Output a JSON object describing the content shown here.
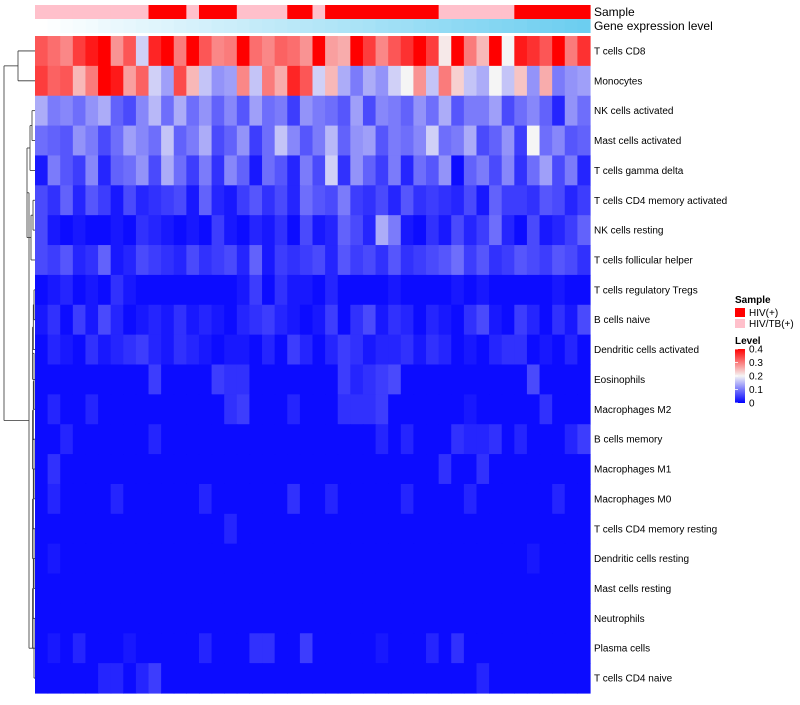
{
  "chart_data": {
    "type": "heatmap",
    "annotation_rows": [
      {
        "name": "Sample"
      },
      {
        "name": "Gene expression level"
      }
    ],
    "rows": [
      "T cells CD8",
      "Monocytes",
      "NK cells activated",
      "Mast cells activated",
      "T cells gamma delta",
      "T cells CD4 memory activated",
      "NK cells resting",
      "T cells follicular helper",
      "T cells regulatory  Tregs",
      "B cells naive",
      "Dendritic cells activated",
      "Eosinophils",
      "Macrophages M2",
      "B cells memory",
      "Macrophages M1",
      "Macrophages M0",
      "T cells CD4 memory resting",
      "Dendritic cells resting",
      "Mast cells resting",
      "Neutrophils",
      "Plasma cells",
      "T cells CD4 naive"
    ],
    "sample_groups": [
      "HIV/TB(+)",
      "HIV/TB(+)",
      "HIV/TB(+)",
      "HIV/TB(+)",
      "HIV/TB(+)",
      "HIV/TB(+)",
      "HIV/TB(+)",
      "HIV/TB(+)",
      "HIV/TB(+)",
      "HIV(+)",
      "HIV(+)",
      "HIV(+)",
      "HIV/TB(+)",
      "HIV(+)",
      "HIV(+)",
      "HIV(+)",
      "HIV/TB(+)",
      "HIV/TB(+)",
      "HIV/TB(+)",
      "HIV/TB(+)",
      "HIV(+)",
      "HIV(+)",
      "HIV/TB(+)",
      "HIV(+)",
      "HIV(+)",
      "HIV(+)",
      "HIV(+)",
      "HIV(+)",
      "HIV(+)",
      "HIV(+)",
      "HIV(+)",
      "HIV(+)",
      "HIV/TB(+)",
      "HIV/TB(+)",
      "HIV/TB(+)",
      "HIV/TB(+)",
      "HIV/TB(+)",
      "HIV/TB(+)",
      "HIV(+)",
      "HIV(+)",
      "HIV(+)",
      "HIV(+)",
      "HIV(+)",
      "HIV(+)"
    ],
    "gene_expression_level": [
      0.0,
      0.02,
      0.05,
      0.07,
      0.09,
      0.12,
      0.14,
      0.16,
      0.19,
      0.21,
      0.23,
      0.26,
      0.28,
      0.3,
      0.33,
      0.35,
      0.37,
      0.4,
      0.42,
      0.44,
      0.47,
      0.49,
      0.51,
      0.53,
      0.56,
      0.58,
      0.6,
      0.63,
      0.65,
      0.67,
      0.7,
      0.72,
      0.74,
      0.77,
      0.79,
      0.81,
      0.84,
      0.86,
      0.88,
      0.91,
      0.93,
      0.95,
      0.98,
      1.0
    ],
    "values": [
      [
        0.33,
        0.31,
        0.29,
        0.35,
        0.38,
        0.4,
        0.28,
        0.33,
        0.17,
        0.37,
        0.4,
        0.3,
        0.4,
        0.33,
        0.29,
        0.3,
        0.4,
        0.31,
        0.29,
        0.32,
        0.31,
        0.28,
        0.4,
        0.27,
        0.26,
        0.4,
        0.35,
        0.29,
        0.33,
        0.36,
        0.4,
        0.35,
        0.21,
        0.4,
        0.3,
        0.25,
        0.4,
        0.2,
        0.38,
        0.36,
        0.33,
        0.4,
        0.3,
        0.36
      ],
      [
        0.35,
        0.32,
        0.33,
        0.25,
        0.3,
        0.4,
        0.38,
        0.27,
        0.32,
        0.17,
        0.13,
        0.34,
        0.25,
        0.16,
        0.12,
        0.13,
        0.29,
        0.16,
        0.3,
        0.26,
        0.37,
        0.33,
        0.17,
        0.25,
        0.14,
        0.1,
        0.14,
        0.12,
        0.17,
        0.2,
        0.28,
        0.16,
        0.3,
        0.23,
        0.16,
        0.14,
        0.2,
        0.16,
        0.24,
        0.12,
        0.26,
        0.1,
        0.12,
        0.13
      ],
      [
        0.14,
        0.1,
        0.11,
        0.09,
        0.12,
        0.14,
        0.08,
        0.06,
        0.11,
        0.15,
        0.09,
        0.14,
        0.09,
        0.12,
        0.08,
        0.11,
        0.07,
        0.13,
        0.09,
        0.1,
        0.05,
        0.12,
        0.1,
        0.09,
        0.07,
        0.13,
        0.06,
        0.11,
        0.1,
        0.08,
        0.12,
        0.09,
        0.14,
        0.07,
        0.1,
        0.1,
        0.13,
        0.06,
        0.09,
        0.11,
        0.08,
        0.03,
        0.12,
        0.09
      ],
      [
        0.09,
        0.08,
        0.07,
        0.12,
        0.1,
        0.06,
        0.09,
        0.13,
        0.11,
        0.09,
        0.16,
        0.08,
        0.1,
        0.14,
        0.06,
        0.08,
        0.12,
        0.05,
        0.09,
        0.16,
        0.11,
        0.07,
        0.1,
        0.15,
        0.08,
        0.12,
        0.13,
        0.07,
        0.1,
        0.09,
        0.11,
        0.17,
        0.09,
        0.1,
        0.14,
        0.06,
        0.08,
        0.12,
        0.05,
        0.2,
        0.09,
        0.11,
        0.07,
        0.08
      ],
      [
        0.02,
        0.1,
        0.07,
        0.05,
        0.11,
        0.03,
        0.08,
        0.09,
        0.12,
        0.06,
        0.14,
        0.09,
        0.05,
        0.1,
        0.04,
        0.11,
        0.08,
        0.02,
        0.09,
        0.07,
        0.03,
        0.1,
        0.06,
        0.17,
        0.04,
        0.12,
        0.08,
        0.05,
        0.1,
        0.03,
        0.09,
        0.07,
        0.12,
        0.01,
        0.08,
        0.1,
        0.06,
        0.11,
        0.04,
        0.09,
        0.13,
        0.06,
        0.1,
        0.03
      ],
      [
        0.06,
        0.04,
        0.08,
        0.03,
        0.07,
        0.05,
        0.02,
        0.06,
        0.03,
        0.04,
        0.05,
        0.06,
        0.02,
        0.08,
        0.03,
        0.02,
        0.05,
        0.07,
        0.04,
        0.06,
        0.03,
        0.09,
        0.07,
        0.06,
        0.1,
        0.05,
        0.04,
        0.06,
        0.03,
        0.07,
        0.04,
        0.05,
        0.04,
        0.03,
        0.06,
        0.02,
        0.08,
        0.05,
        0.05,
        0.04,
        0.07,
        0.06,
        0.03,
        0.05
      ],
      [
        0.06,
        0.02,
        0.01,
        0.02,
        0.01,
        0.01,
        0.02,
        0.01,
        0.04,
        0.03,
        0.02,
        0.01,
        0.02,
        0.01,
        0.05,
        0.02,
        0.01,
        0.03,
        0.02,
        0.04,
        0.01,
        0.06,
        0.02,
        0.03,
        0.08,
        0.06,
        0.03,
        0.14,
        0.1,
        0.02,
        0.01,
        0.04,
        0.02,
        0.06,
        0.03,
        0.05,
        0.09,
        0.03,
        0.01,
        0.06,
        0.02,
        0.03,
        0.05,
        0.08
      ],
      [
        0.06,
        0.05,
        0.07,
        0.03,
        0.04,
        0.08,
        0.02,
        0.03,
        0.06,
        0.05,
        0.04,
        0.03,
        0.06,
        0.04,
        0.05,
        0.06,
        0.03,
        0.08,
        0.02,
        0.05,
        0.04,
        0.05,
        0.06,
        0.03,
        0.07,
        0.05,
        0.06,
        0.04,
        0.07,
        0.04,
        0.05,
        0.06,
        0.07,
        0.09,
        0.05,
        0.07,
        0.04,
        0.05,
        0.07,
        0.06,
        0.05,
        0.07,
        0.06,
        0.04
      ],
      [
        0.01,
        0.02,
        0.03,
        0.01,
        0.02,
        0.01,
        0.04,
        0.02,
        0.01,
        0.01,
        0.01,
        0.01,
        0.01,
        0.01,
        0.01,
        0.01,
        0.02,
        0.05,
        0.01,
        0.04,
        0.02,
        0.02,
        0.01,
        0.03,
        0.01,
        0.01,
        0.01,
        0.01,
        0.02,
        0.01,
        0.01,
        0.01,
        0.01,
        0.02,
        0.01,
        0.02,
        0.01,
        0.01,
        0.01,
        0.01,
        0.01,
        0.02,
        0.01,
        0.01
      ],
      [
        0.02,
        0.04,
        0.01,
        0.05,
        0.02,
        0.06,
        0.03,
        0.01,
        0.02,
        0.03,
        0.02,
        0.04,
        0.02,
        0.03,
        0.02,
        0.01,
        0.03,
        0.04,
        0.05,
        0.03,
        0.02,
        0.01,
        0.02,
        0.05,
        0.01,
        0.04,
        0.06,
        0.02,
        0.04,
        0.03,
        0.01,
        0.03,
        0.02,
        0.01,
        0.04,
        0.06,
        0.02,
        0.01,
        0.05,
        0.03,
        0.01,
        0.04,
        0.02,
        0.06
      ],
      [
        0.01,
        0.03,
        0.02,
        0.01,
        0.04,
        0.02,
        0.03,
        0.04,
        0.05,
        0.03,
        0.02,
        0.04,
        0.03,
        0.02,
        0.01,
        0.02,
        0.02,
        0.01,
        0.03,
        0.01,
        0.05,
        0.03,
        0.01,
        0.03,
        0.05,
        0.04,
        0.02,
        0.03,
        0.03,
        0.04,
        0.02,
        0.04,
        0.03,
        0.01,
        0.02,
        0.01,
        0.03,
        0.04,
        0.04,
        0.01,
        0.02,
        0.01,
        0.03,
        0.01
      ],
      [
        0.01,
        0.01,
        0.01,
        0.01,
        0.01,
        0.01,
        0.01,
        0.01,
        0.01,
        0.05,
        0.01,
        0.01,
        0.01,
        0.01,
        0.05,
        0.04,
        0.04,
        0.01,
        0.01,
        0.01,
        0.01,
        0.01,
        0.01,
        0.01,
        0.05,
        0.03,
        0.04,
        0.05,
        0.06,
        0.01,
        0.01,
        0.01,
        0.01,
        0.01,
        0.01,
        0.01,
        0.01,
        0.01,
        0.01,
        0.06,
        0.01,
        0.01,
        0.01,
        0.01
      ],
      [
        0.01,
        0.03,
        0.01,
        0.01,
        0.03,
        0.01,
        0.01,
        0.01,
        0.01,
        0.01,
        0.01,
        0.01,
        0.01,
        0.01,
        0.01,
        0.04,
        0.05,
        0.01,
        0.01,
        0.01,
        0.03,
        0.01,
        0.01,
        0.01,
        0.04,
        0.04,
        0.04,
        0.05,
        0.01,
        0.01,
        0.01,
        0.01,
        0.01,
        0.01,
        0.02,
        0.01,
        0.01,
        0.01,
        0.01,
        0.01,
        0.04,
        0.01,
        0.01,
        0.01
      ],
      [
        0.01,
        0.01,
        0.03,
        0.01,
        0.01,
        0.01,
        0.01,
        0.01,
        0.01,
        0.03,
        0.01,
        0.01,
        0.01,
        0.01,
        0.01,
        0.01,
        0.01,
        0.01,
        0.01,
        0.01,
        0.01,
        0.01,
        0.01,
        0.01,
        0.01,
        0.01,
        0.01,
        0.03,
        0.01,
        0.03,
        0.01,
        0.01,
        0.01,
        0.04,
        0.03,
        0.03,
        0.04,
        0.01,
        0.03,
        0.01,
        0.01,
        0.01,
        0.03,
        0.05
      ],
      [
        0.01,
        0.04,
        0.01,
        0.01,
        0.01,
        0.01,
        0.01,
        0.01,
        0.01,
        0.01,
        0.01,
        0.01,
        0.01,
        0.01,
        0.01,
        0.01,
        0.01,
        0.01,
        0.01,
        0.01,
        0.01,
        0.01,
        0.01,
        0.01,
        0.01,
        0.01,
        0.01,
        0.01,
        0.01,
        0.01,
        0.01,
        0.01,
        0.04,
        0.01,
        0.01,
        0.04,
        0.01,
        0.01,
        0.01,
        0.01,
        0.01,
        0.01,
        0.01,
        0.01
      ],
      [
        0.01,
        0.03,
        0.01,
        0.01,
        0.01,
        0.01,
        0.03,
        0.01,
        0.01,
        0.01,
        0.01,
        0.01,
        0.01,
        0.03,
        0.01,
        0.01,
        0.01,
        0.01,
        0.01,
        0.01,
        0.04,
        0.01,
        0.01,
        0.03,
        0.01,
        0.01,
        0.01,
        0.01,
        0.01,
        0.03,
        0.01,
        0.01,
        0.01,
        0.01,
        0.03,
        0.01,
        0.01,
        0.01,
        0.01,
        0.01,
        0.01,
        0.03,
        0.01,
        0.01
      ],
      [
        0.01,
        0.01,
        0.01,
        0.01,
        0.01,
        0.01,
        0.01,
        0.01,
        0.01,
        0.01,
        0.01,
        0.01,
        0.01,
        0.01,
        0.01,
        0.03,
        0.01,
        0.01,
        0.01,
        0.01,
        0.01,
        0.01,
        0.01,
        0.01,
        0.01,
        0.01,
        0.01,
        0.01,
        0.01,
        0.01,
        0.01,
        0.01,
        0.01,
        0.01,
        0.01,
        0.01,
        0.01,
        0.01,
        0.01,
        0.01,
        0.01,
        0.01,
        0.01,
        0.01
      ],
      [
        0.01,
        0.02,
        0.01,
        0.01,
        0.01,
        0.01,
        0.01,
        0.01,
        0.01,
        0.01,
        0.01,
        0.01,
        0.01,
        0.01,
        0.01,
        0.01,
        0.01,
        0.01,
        0.01,
        0.01,
        0.01,
        0.01,
        0.01,
        0.01,
        0.01,
        0.01,
        0.01,
        0.01,
        0.01,
        0.01,
        0.01,
        0.01,
        0.01,
        0.01,
        0.01,
        0.01,
        0.01,
        0.01,
        0.01,
        0.02,
        0.01,
        0.01,
        0.01,
        0.01
      ],
      [
        0.01,
        0.01,
        0.01,
        0.01,
        0.01,
        0.01,
        0.01,
        0.01,
        0.01,
        0.01,
        0.01,
        0.01,
        0.01,
        0.01,
        0.01,
        0.01,
        0.01,
        0.01,
        0.01,
        0.01,
        0.01,
        0.01,
        0.01,
        0.01,
        0.01,
        0.01,
        0.01,
        0.01,
        0.01,
        0.01,
        0.01,
        0.01,
        0.01,
        0.01,
        0.01,
        0.01,
        0.01,
        0.01,
        0.01,
        0.01,
        0.01,
        0.01,
        0.01,
        0.01
      ],
      [
        0.01,
        0.01,
        0.01,
        0.01,
        0.01,
        0.01,
        0.01,
        0.01,
        0.01,
        0.01,
        0.01,
        0.01,
        0.01,
        0.01,
        0.01,
        0.01,
        0.01,
        0.01,
        0.01,
        0.01,
        0.01,
        0.01,
        0.01,
        0.01,
        0.01,
        0.01,
        0.01,
        0.01,
        0.01,
        0.01,
        0.01,
        0.01,
        0.01,
        0.01,
        0.01,
        0.01,
        0.01,
        0.01,
        0.01,
        0.01,
        0.01,
        0.01,
        0.01,
        0.01
      ],
      [
        0.01,
        0.02,
        0.01,
        0.03,
        0.01,
        0.01,
        0.01,
        0.02,
        0.01,
        0.01,
        0.01,
        0.01,
        0.01,
        0.03,
        0.01,
        0.01,
        0.01,
        0.04,
        0.04,
        0.01,
        0.01,
        0.05,
        0.01,
        0.01,
        0.01,
        0.01,
        0.01,
        0.02,
        0.01,
        0.01,
        0.01,
        0.03,
        0.01,
        0.04,
        0.01,
        0.01,
        0.01,
        0.01,
        0.01,
        0.01,
        0.01,
        0.01,
        0.01,
        0.01
      ],
      [
        0.01,
        0.01,
        0.01,
        0.01,
        0.01,
        0.03,
        0.03,
        0.01,
        0.03,
        0.05,
        0.01,
        0.01,
        0.01,
        0.01,
        0.01,
        0.01,
        0.01,
        0.01,
        0.01,
        0.01,
        0.01,
        0.01,
        0.01,
        0.01,
        0.01,
        0.01,
        0.01,
        0.01,
        0.01,
        0.01,
        0.01,
        0.01,
        0.01,
        0.01,
        0.01,
        0.03,
        0.01,
        0.01,
        0.01,
        0.01,
        0.01,
        0.01,
        0.01,
        0.01
      ]
    ],
    "legend": {
      "sample_title": "Sample",
      "sample_entries": [
        {
          "label": "HIV(+)",
          "color": "#ff0000"
        },
        {
          "label": "HIV/TB(+)",
          "color": "#ffc0cb"
        }
      ],
      "level_title": "Level",
      "level_ticks": [
        0.4,
        0.3,
        0.2,
        0.1,
        0
      ],
      "level_colors": {
        "low": "#0000ff",
        "mid": "#f5f5f5",
        "high": "#ff0000"
      },
      "level_range": [
        0,
        0.4
      ]
    },
    "gene_level_colors": {
      "low": "#ffffff",
      "high": "#6ccef0"
    },
    "dendrogram": "hierarchical clustering of rows (left side)"
  }
}
